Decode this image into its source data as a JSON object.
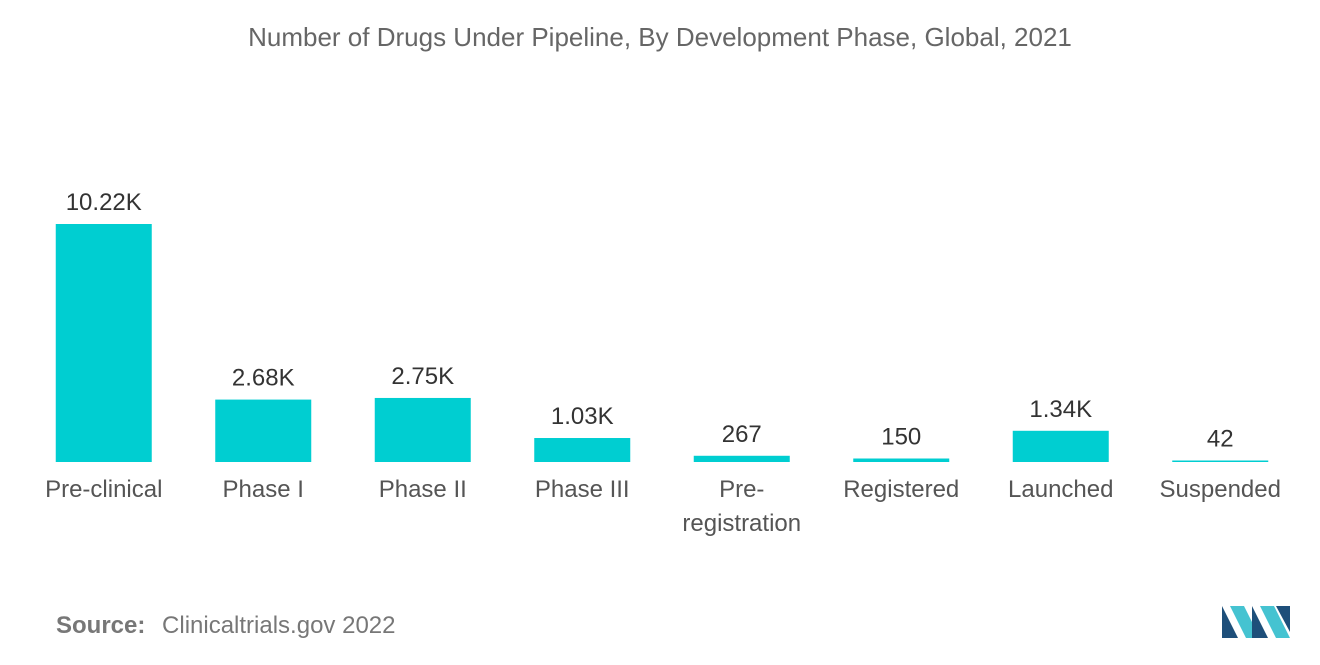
{
  "title": "Number of Drugs Under Pipeline, By Development Phase, Global, 2021",
  "source": {
    "label": "Source:",
    "text": "Clinicaltrials.gov 2022"
  },
  "colors": {
    "bar": "#00CED1",
    "logo_dark": "#1E4F7A",
    "logo_light": "#45C3D1"
  },
  "logo": {
    "name": "mordor-intelligence-logo"
  },
  "chart_data": {
    "type": "bar",
    "title": "Number of Drugs Under Pipeline, By Development Phase, Global, 2021",
    "xlabel": "",
    "ylabel": "",
    "ylim": [
      0,
      10220
    ],
    "grid": false,
    "categories": [
      "Pre-clinical",
      "Phase I",
      "Phase II",
      "Phase III",
      "Pre-registration",
      "Registered",
      "Launched",
      "Suspended"
    ],
    "category_lines": [
      [
        "Pre-clinical"
      ],
      [
        "Phase I"
      ],
      [
        "Phase II"
      ],
      [
        "Phase III"
      ],
      [
        "Pre-",
        "registration"
      ],
      [
        "Registered"
      ],
      [
        "Launched"
      ],
      [
        "Suspended"
      ]
    ],
    "values": [
      10220,
      2680,
      2750,
      1030,
      267,
      150,
      1340,
      42
    ],
    "value_labels": [
      "10.22K",
      "2.68K",
      "2.75K",
      "1.03K",
      "267",
      "150",
      "1.34K",
      "42"
    ]
  }
}
